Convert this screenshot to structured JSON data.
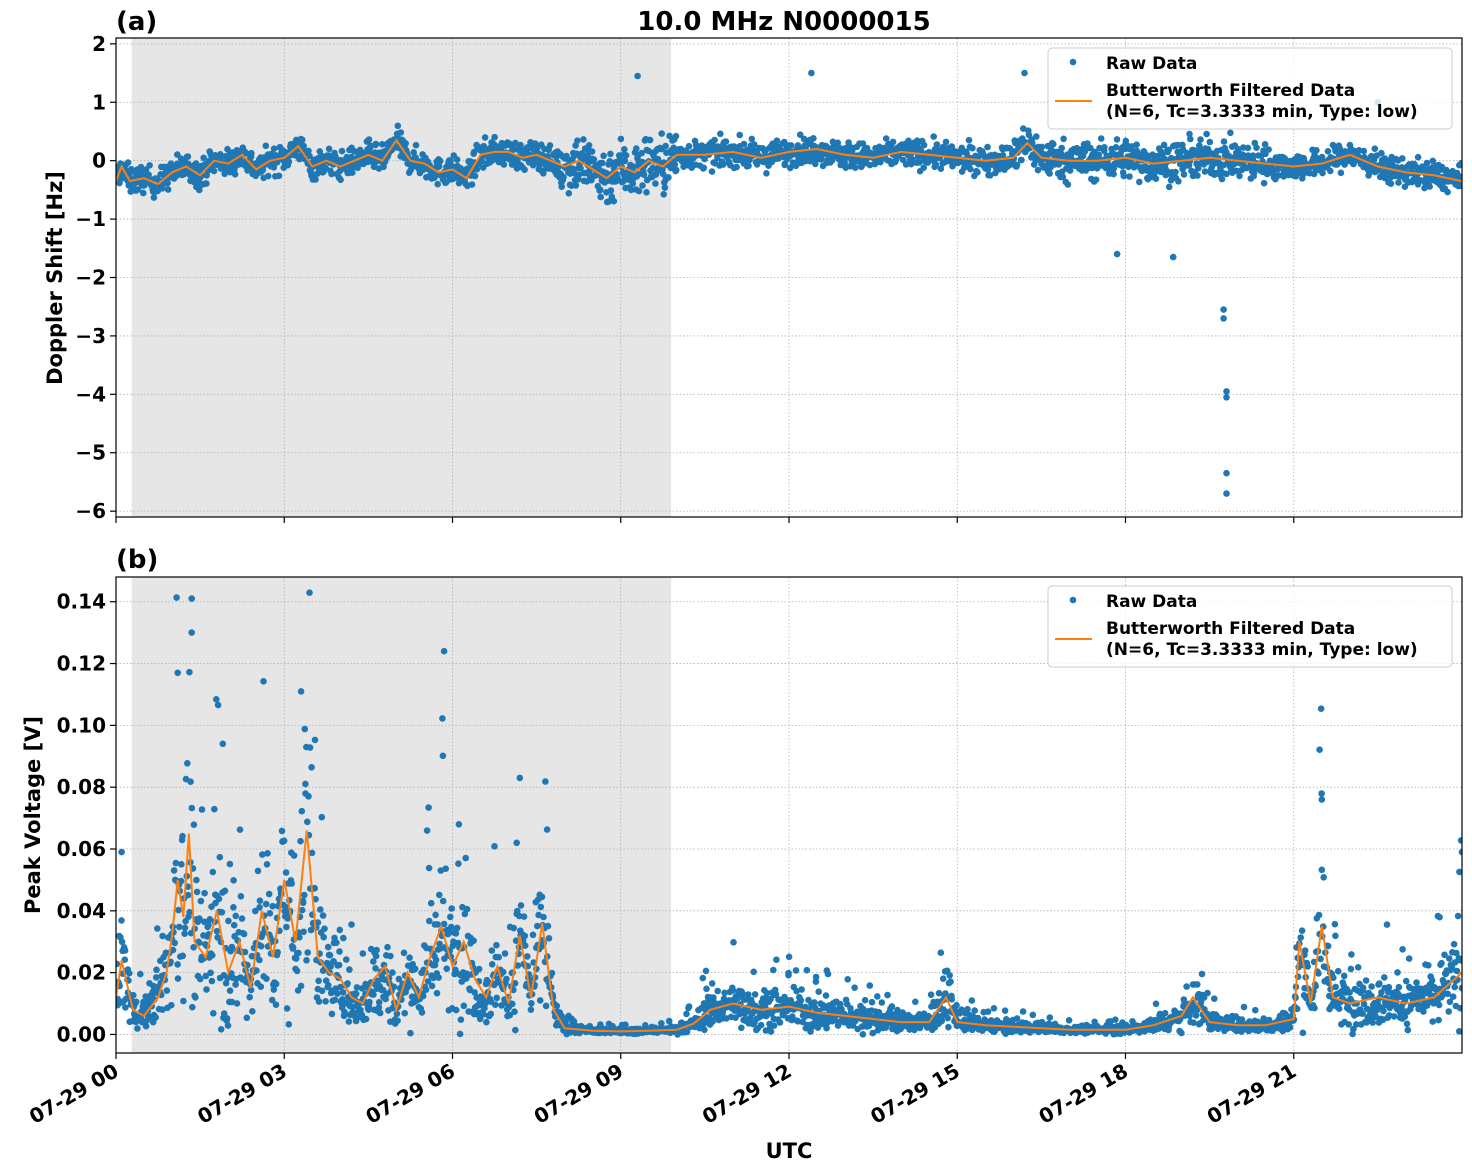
{
  "figure": {
    "title": "10.0 MHz N0000015",
    "xlabel": "UTC",
    "x_ticks": [
      "07-29 00",
      "07-29 03",
      "07-29 06",
      "07-29 09",
      "07-29 12",
      "07-29 15",
      "07-29 18",
      "07-29 21"
    ]
  },
  "colors": {
    "raw": "#1f77b4",
    "filtered": "#ff7f0e",
    "shade": "#e6e6e6",
    "grid": "#b0b0b0"
  },
  "chart_data": [
    {
      "type": "scatter",
      "panel_label": "(a)",
      "ylabel": "Doppler Shift [Hz]",
      "xlim_hours": [
        0,
        24
      ],
      "ylim": [
        -6.1,
        2.1
      ],
      "y_ticks": [
        "−6",
        "−5",
        "−4",
        "−3",
        "−2",
        "−1",
        "0",
        "1",
        "2"
      ],
      "y_tick_values": [
        -6,
        -5,
        -4,
        -3,
        -2,
        -1,
        0,
        1,
        2
      ],
      "shaded_span_hours": [
        0.28,
        9.9
      ],
      "grid": true,
      "legend": {
        "placement": "top-right",
        "raw_label": "Raw Data",
        "filtered_line1": "Butterworth Filtered Data",
        "filtered_line2": "(N=6, Tc=3.3333 min, Type: low)"
      },
      "series": [
        {
          "name": "Butterworth Filtered Data",
          "kind": "line",
          "x": [
            0,
            0.1,
            0.25,
            0.5,
            0.75,
            1.0,
            1.25,
            1.5,
            1.75,
            2.0,
            2.25,
            2.5,
            2.75,
            3.0,
            3.25,
            3.5,
            3.75,
            4.0,
            4.25,
            4.5,
            4.75,
            5.0,
            5.25,
            5.5,
            5.75,
            6.0,
            6.25,
            6.5,
            6.75,
            7.0,
            7.25,
            7.5,
            7.75,
            8.0,
            8.25,
            8.5,
            8.75,
            9.0,
            9.25,
            9.5,
            9.75,
            10.0,
            10.5,
            11.0,
            11.5,
            12.0,
            12.5,
            13.0,
            13.5,
            14.0,
            14.5,
            15.0,
            15.5,
            16.0,
            16.25,
            16.5,
            17.0,
            17.5,
            18.0,
            18.5,
            19.0,
            19.5,
            20.0,
            20.5,
            21.0,
            21.5,
            22.0,
            22.5,
            23.0,
            23.5,
            24.0
          ],
          "y": [
            -0.35,
            -0.1,
            -0.35,
            -0.3,
            -0.4,
            -0.2,
            -0.1,
            -0.25,
            0.0,
            -0.05,
            0.1,
            -0.15,
            0.0,
            0.05,
            0.25,
            -0.1,
            0.0,
            -0.1,
            0.0,
            0.1,
            0.0,
            0.35,
            0.0,
            -0.05,
            -0.2,
            -0.15,
            -0.3,
            0.1,
            0.15,
            0.15,
            0.05,
            0.1,
            0.0,
            -0.1,
            0.0,
            -0.15,
            -0.3,
            -0.1,
            -0.2,
            0.0,
            -0.1,
            0.1,
            0.1,
            0.15,
            0.05,
            0.15,
            0.2,
            0.1,
            0.05,
            0.15,
            0.1,
            0.05,
            0.0,
            0.05,
            0.3,
            0.05,
            0.0,
            0.0,
            0.05,
            -0.05,
            0.0,
            0.05,
            0.0,
            -0.05,
            -0.1,
            -0.05,
            0.1,
            -0.1,
            -0.2,
            -0.25,
            -0.35
          ]
        },
        {
          "name": "Raw Data",
          "kind": "scatter",
          "note_points": [
            [
              19.75,
              -2.55
            ],
            [
              19.75,
              -2.7
            ],
            [
              19.8,
              -3.95
            ],
            [
              19.8,
              -4.05
            ],
            [
              19.8,
              -5.35
            ],
            [
              19.8,
              -5.7
            ],
            [
              17.85,
              -1.6
            ],
            [
              18.85,
              -1.65
            ],
            [
              16.2,
              1.5
            ],
            [
              12.4,
              1.5
            ],
            [
              9.3,
              1.45
            ],
            [
              22.5,
              1.0
            ]
          ]
        }
      ]
    },
    {
      "type": "scatter",
      "panel_label": "(b)",
      "ylabel": "Peak Voltage [V]",
      "xlim_hours": [
        0,
        24
      ],
      "ylim": [
        -0.006,
        0.148
      ],
      "y_ticks": [
        "0.00",
        "0.02",
        "0.04",
        "0.06",
        "0.08",
        "0.10",
        "0.12",
        "0.14"
      ],
      "y_tick_values": [
        0.0,
        0.02,
        0.04,
        0.06,
        0.08,
        0.1,
        0.12,
        0.14
      ],
      "shaded_span_hours": [
        0.28,
        9.9
      ],
      "grid": true,
      "legend": {
        "placement": "top-right",
        "raw_label": "Raw Data",
        "filtered_line1": "Butterworth Filtered Data",
        "filtered_line2": "(N=6, Tc=3.3333 min, Type: low)"
      },
      "series": [
        {
          "name": "Butterworth Filtered Data",
          "kind": "line",
          "x": [
            0,
            0.1,
            0.3,
            0.5,
            0.75,
            0.9,
            1.0,
            1.1,
            1.2,
            1.3,
            1.4,
            1.6,
            1.8,
            2.0,
            2.2,
            2.4,
            2.6,
            2.8,
            3.0,
            3.2,
            3.4,
            3.6,
            3.8,
            4.0,
            4.2,
            4.4,
            4.6,
            4.8,
            5.0,
            5.2,
            5.4,
            5.6,
            5.8,
            6.0,
            6.2,
            6.4,
            6.6,
            6.8,
            7.0,
            7.2,
            7.4,
            7.6,
            7.8,
            8.0,
            8.5,
            9.0,
            9.5,
            10.0,
            10.3,
            10.6,
            11.0,
            11.5,
            12.0,
            12.5,
            13.0,
            13.5,
            14.0,
            14.5,
            14.8,
            15.0,
            15.5,
            16.0,
            17.0,
            18.0,
            18.5,
            19.0,
            19.2,
            19.5,
            20.0,
            20.5,
            21.0,
            21.1,
            21.3,
            21.5,
            21.7,
            22.0,
            22.5,
            23.0,
            23.5,
            24.0
          ],
          "y": [
            0.012,
            0.024,
            0.008,
            0.006,
            0.012,
            0.02,
            0.032,
            0.05,
            0.038,
            0.065,
            0.03,
            0.025,
            0.04,
            0.02,
            0.03,
            0.015,
            0.04,
            0.025,
            0.05,
            0.03,
            0.066,
            0.025,
            0.02,
            0.018,
            0.012,
            0.01,
            0.018,
            0.022,
            0.008,
            0.02,
            0.012,
            0.025,
            0.035,
            0.022,
            0.03,
            0.018,
            0.012,
            0.022,
            0.01,
            0.032,
            0.012,
            0.036,
            0.008,
            0.002,
            0.0012,
            0.001,
            0.0012,
            0.0015,
            0.0035,
            0.008,
            0.01,
            0.008,
            0.009,
            0.007,
            0.006,
            0.005,
            0.004,
            0.004,
            0.012,
            0.004,
            0.003,
            0.0025,
            0.0015,
            0.0015,
            0.003,
            0.006,
            0.012,
            0.004,
            0.003,
            0.003,
            0.005,
            0.03,
            0.01,
            0.035,
            0.012,
            0.01,
            0.012,
            0.01,
            0.012,
            0.02
          ]
        },
        {
          "name": "Raw Data",
          "kind": "scatter",
          "note_points": [
            [
              1.35,
              0.141
            ],
            [
              1.35,
              0.13
            ],
            [
              1.1,
              0.117
            ],
            [
              5.85,
              0.124
            ],
            [
              3.3,
              0.111
            ],
            [
              7.2,
              0.083
            ],
            [
              21.5,
              0.076
            ],
            [
              0.1,
              0.059
            ],
            [
              24.0,
              0.059
            ]
          ]
        }
      ]
    }
  ]
}
